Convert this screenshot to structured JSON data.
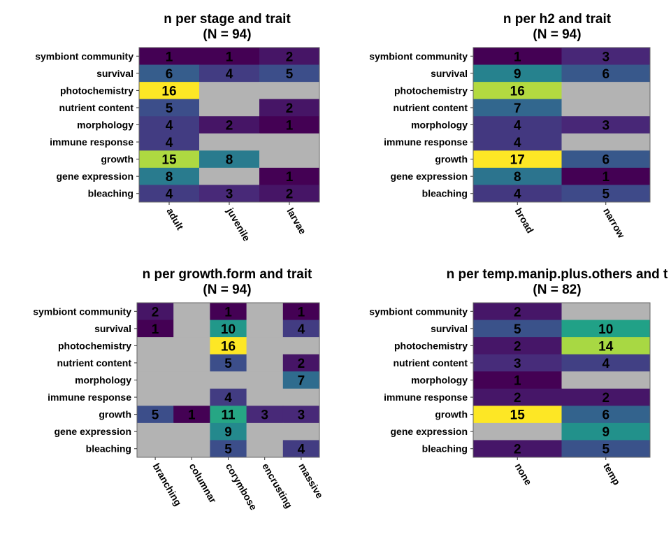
{
  "chart_data": [
    {
      "type": "heatmap",
      "title": "n per stage and trait",
      "subtitle": "(N = 94)",
      "categories_x": [
        "adult",
        "juvenile",
        "larvae"
      ],
      "categories_y": [
        "symbiont community",
        "survival",
        "photochemistry",
        "nutrient content",
        "morphology",
        "immune response",
        "growth",
        "gene expression",
        "bleaching"
      ],
      "values": [
        [
          1,
          1,
          2
        ],
        [
          6,
          4,
          5
        ],
        [
          16,
          null,
          null
        ],
        [
          5,
          null,
          2
        ],
        [
          4,
          2,
          1
        ],
        [
          4,
          null,
          null
        ],
        [
          15,
          8,
          null
        ],
        [
          8,
          null,
          1
        ],
        [
          4,
          3,
          2
        ]
      ],
      "missing_color": "#b3b3b3",
      "colormap": "viridis"
    },
    {
      "type": "heatmap",
      "title": "n per h2 and trait",
      "subtitle": "(N = 94)",
      "categories_x": [
        "broad",
        "narrow"
      ],
      "categories_y": [
        "symbiont community",
        "survival",
        "photochemistry",
        "nutrient content",
        "morphology",
        "immune response",
        "growth",
        "gene expression",
        "bleaching"
      ],
      "values": [
        [
          1,
          3
        ],
        [
          9,
          6
        ],
        [
          16,
          null
        ],
        [
          7,
          null
        ],
        [
          4,
          3
        ],
        [
          4,
          null
        ],
        [
          17,
          6
        ],
        [
          8,
          1
        ],
        [
          4,
          5
        ]
      ],
      "missing_color": "#b3b3b3",
      "colormap": "viridis"
    },
    {
      "type": "heatmap",
      "title": "n per growth.form and trait",
      "subtitle": "(N = 94)",
      "categories_x": [
        "branching",
        "columnar",
        "corymbose",
        "encrusting",
        "massive"
      ],
      "categories_y": [
        "symbiont community",
        "survival",
        "photochemistry",
        "nutrient content",
        "morphology",
        "immune response",
        "growth",
        "gene expression",
        "bleaching"
      ],
      "values": [
        [
          2,
          null,
          1,
          null,
          1
        ],
        [
          1,
          null,
          10,
          null,
          4
        ],
        [
          null,
          null,
          16,
          null,
          null
        ],
        [
          null,
          null,
          5,
          null,
          2
        ],
        [
          null,
          null,
          null,
          null,
          7
        ],
        [
          null,
          null,
          4,
          null,
          null
        ],
        [
          5,
          1,
          11,
          3,
          3
        ],
        [
          null,
          null,
          9,
          null,
          null
        ],
        [
          null,
          null,
          5,
          null,
          4
        ]
      ],
      "missing_color": "#b3b3b3",
      "colormap": "viridis"
    },
    {
      "type": "heatmap",
      "title": "n per temp.manip.plus.others and t",
      "subtitle": "(N = 82)",
      "categories_x": [
        "none",
        "temp"
      ],
      "categories_y": [
        "symbiont community",
        "survival",
        "photochemistry",
        "nutrient content",
        "morphology",
        "immune response",
        "growth",
        "gene expression",
        "bleaching"
      ],
      "values": [
        [
          2,
          null
        ],
        [
          5,
          10
        ],
        [
          2,
          14
        ],
        [
          3,
          4
        ],
        [
          1,
          null
        ],
        [
          2,
          2
        ],
        [
          15,
          6
        ],
        [
          null,
          9
        ],
        [
          2,
          5
        ]
      ],
      "missing_color": "#b3b3b3",
      "colormap": "viridis"
    }
  ]
}
